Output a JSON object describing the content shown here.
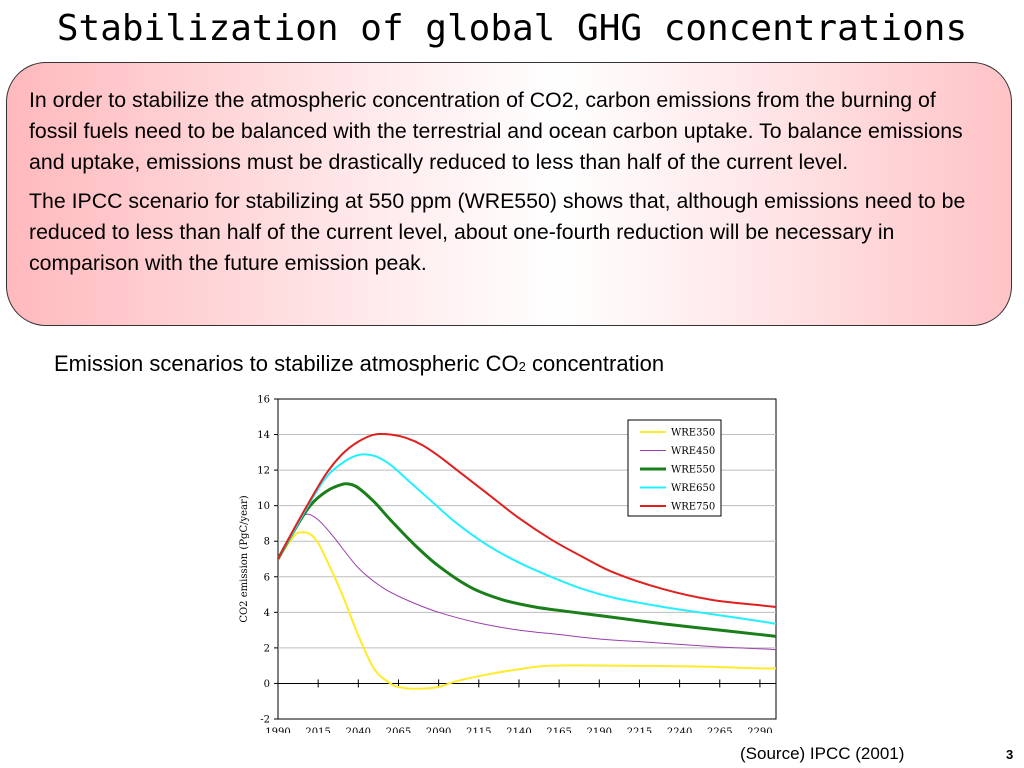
{
  "slide": {
    "title": "Stabilization of global GHG concentrations",
    "paragraphs": [
      "In order to stabilize the atmospheric concentration of CO2, carbon emissions from the burning of fossil fuels need to be balanced with the terrestrial and ocean carbon uptake. To balance emissions and uptake, emissions must be drastically reduced to less than half of the current level.",
      "The IPCC scenario for stabilizing at 550 ppm (WRE550) shows that, although emissions need to be reduced to less than half of the current level, about one-fourth reduction will be necessary in comparison with the future emission peak."
    ],
    "chart_caption": "Emission scenarios to stabilize atmospheric CO",
    "chart_caption_sub": "2",
    "chart_caption_end": " concentration",
    "source": "(Source) IPCC (2001)",
    "page_number": "3"
  },
  "chart_data": {
    "type": "line",
    "xlabel": "",
    "ylabel": "CO2 emission (PgC/year)",
    "xlim": [
      1990,
      2300
    ],
    "ylim": [
      -2,
      16
    ],
    "x_ticks": [
      1990,
      2015,
      2040,
      2065,
      2090,
      2115,
      2140,
      2165,
      2190,
      2215,
      2240,
      2265,
      2290
    ],
    "y_ticks": [
      -2,
      0,
      2,
      4,
      6,
      8,
      10,
      12,
      14,
      16
    ],
    "grid": "horizontal",
    "legend_position": "top-right",
    "series": [
      {
        "name": "WRE350",
        "color": "#ffeb2a",
        "x": [
          1990,
          2000,
          2005,
          2010,
          2015,
          2020,
          2030,
          2040,
          2050,
          2060,
          2065,
          2075,
          2090,
          2100,
          2120,
          2140,
          2160,
          2200,
          2250,
          2290,
          2300
        ],
        "y": [
          7.0,
          8.3,
          8.5,
          8.4,
          7.9,
          7.0,
          5.0,
          2.7,
          0.8,
          0.0,
          -0.2,
          -0.3,
          -0.2,
          0.1,
          0.5,
          0.8,
          1.0,
          1.0,
          0.95,
          0.85,
          0.85
        ]
      },
      {
        "name": "WRE450",
        "color": "#9a3fb0",
        "x": [
          1990,
          2000,
          2007,
          2015,
          2025,
          2040,
          2055,
          2070,
          2090,
          2115,
          2140,
          2165,
          2190,
          2215,
          2240,
          2265,
          2290,
          2300
        ],
        "y": [
          7.0,
          8.7,
          9.5,
          9.2,
          8.2,
          6.5,
          5.4,
          4.7,
          4.0,
          3.4,
          3.0,
          2.75,
          2.5,
          2.35,
          2.2,
          2.05,
          1.95,
          1.9
        ]
      },
      {
        "name": "WRE550",
        "color": "#1a7f1a",
        "x": [
          1990,
          2000,
          2010,
          2020,
          2030,
          2035,
          2040,
          2050,
          2060,
          2075,
          2090,
          2110,
          2130,
          2150,
          2170,
          2200,
          2230,
          2260,
          2290,
          2300
        ],
        "y": [
          7.0,
          8.6,
          10.0,
          10.8,
          11.2,
          11.2,
          11.0,
          10.2,
          9.2,
          7.8,
          6.6,
          5.4,
          4.7,
          4.3,
          4.05,
          3.7,
          3.35,
          3.05,
          2.75,
          2.65
        ]
      },
      {
        "name": "WRE650",
        "color": "#22f0ff",
        "x": [
          1990,
          2000,
          2010,
          2020,
          2030,
          2040,
          2050,
          2060,
          2070,
          2085,
          2100,
          2120,
          2140,
          2160,
          2180,
          2200,
          2230,
          2260,
          2290,
          2300
        ],
        "y": [
          7.0,
          8.6,
          10.2,
          11.6,
          12.4,
          12.85,
          12.8,
          12.3,
          11.5,
          10.3,
          9.1,
          7.8,
          6.8,
          6.0,
          5.3,
          4.8,
          4.3,
          3.9,
          3.5,
          3.35
        ]
      },
      {
        "name": "WRE750",
        "color": "#e01f1f",
        "x": [
          1990,
          2000,
          2010,
          2020,
          2030,
          2040,
          2050,
          2060,
          2070,
          2080,
          2090,
          2100,
          2120,
          2140,
          2160,
          2180,
          2200,
          2230,
          2260,
          2290,
          2300
        ],
        "y": [
          7.0,
          8.7,
          10.3,
          11.8,
          12.9,
          13.6,
          14.0,
          14.0,
          13.8,
          13.4,
          12.8,
          12.1,
          10.7,
          9.3,
          8.1,
          7.1,
          6.2,
          5.3,
          4.7,
          4.4,
          4.3
        ]
      }
    ]
  }
}
